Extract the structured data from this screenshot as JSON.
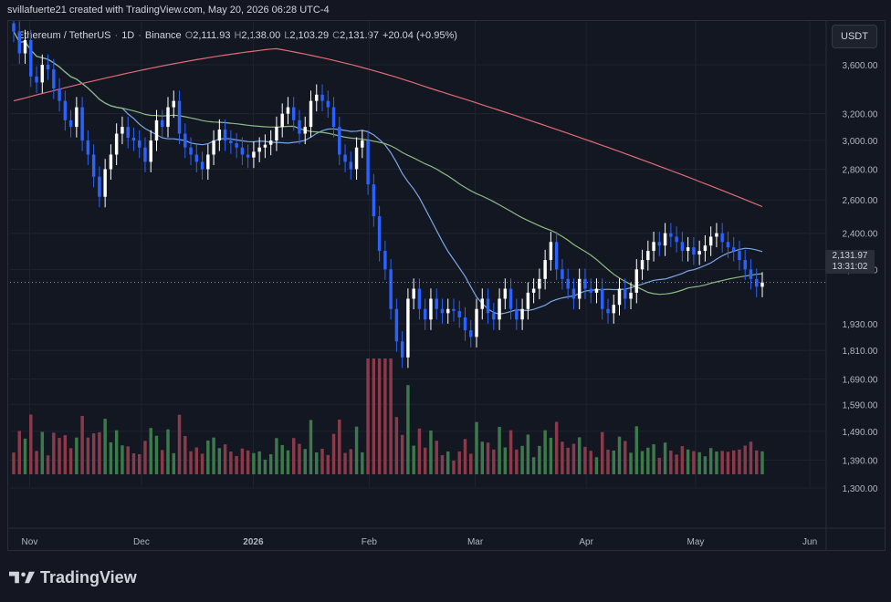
{
  "header": {
    "credit": "svillafuerte21 created with TradingView.com, May 20, 2026 06:28 UTC-4"
  },
  "legend": {
    "symbol": "Ethereum / TetherUS",
    "timeframe": "1D",
    "exchange": "Binance",
    "open_label": "O",
    "open": "2,111.93",
    "high_label": "H",
    "high": "2,138.00",
    "low_label": "L",
    "low": "2,103.29",
    "close_label": "C",
    "close": "2,131.97",
    "change": "+20.04 (+0.95%)"
  },
  "currency_button": "USDT",
  "last_price": {
    "price": "2,131.97",
    "countdown": "13:31:02"
  },
  "footer": {
    "brand": "TradingView"
  },
  "colors": {
    "background": "#131722",
    "up_candle": "#ffffff",
    "down_candle": "#2962ff",
    "ma_short": "#7ba7e8",
    "ma_mid": "#8bbb83",
    "ma_long": "#e06c75",
    "volume_up": "#3d7a4b",
    "volume_down": "#8b3a4a"
  },
  "chart_data": {
    "type": "candlestick",
    "title": "Ethereum / TetherUS · 1D · Binance",
    "x_ticks": [
      "Nov",
      "Dec",
      "2026",
      "Feb",
      "Mar",
      "Apr",
      "May",
      "Jun"
    ],
    "y_ticks": [
      "3,600.00",
      "3,200.00",
      "3,000.00",
      "2,800.00",
      "2,600.00",
      "2,400.00",
      "2,200.00",
      "1,930.00",
      "1,810.00",
      "1,690.00",
      "1,590.00",
      "1,490.00",
      "1,390.00",
      "1,300.00"
    ],
    "y_scale": "log",
    "ylim": [
      1300,
      4000
    ],
    "grid": true,
    "close_series_approx": [
      3900,
      3700,
      3820,
      3500,
      3450,
      3600,
      3560,
      3400,
      3300,
      3150,
      3100,
      3250,
      3000,
      2900,
      2750,
      2620,
      2800,
      2900,
      3050,
      3100,
      3020,
      3000,
      2950,
      2850,
      3000,
      3150,
      3100,
      3250,
      3300,
      3050,
      2950,
      2900,
      2850,
      2800,
      2900,
      3000,
      3080,
      3000,
      2980,
      2950,
      2900,
      2880,
      2920,
      2950,
      2970,
      3000,
      3100,
      3200,
      3250,
      3150,
      3050,
      3100,
      3300,
      3350,
      3300,
      3250,
      3100,
      2900,
      2850,
      2800,
      2950,
      3000,
      2700,
      2500,
      2300,
      2200,
      2000,
      1850,
      1780,
      2050,
      2100,
      2000,
      1950,
      2050,
      2000,
      1980,
      2000,
      1990,
      1960,
      1900,
      1870,
      2000,
      2050,
      1980,
      1950,
      2050,
      2100,
      2000,
      1950,
      2000,
      2080,
      2100,
      2150,
      2250,
      2350,
      2200,
      2150,
      2100,
      2050,
      2150,
      2100,
      2080,
      2100,
      2000,
      1980,
      2020,
      2100,
      2050,
      2080,
      2200,
      2250,
      2300,
      2350,
      2330,
      2400,
      2380,
      2350,
      2300,
      2320,
      2280,
      2300,
      2330,
      2380,
      2400,
      2350,
      2320,
      2300,
      2250,
      2200,
      2150,
      2110,
      2132
    ],
    "series": [
      {
        "name": "",
        "type": "moving_average",
        "color": "#7ba7e8"
      },
      {
        "name": "",
        "type": "moving_average",
        "color": "#8bbb83"
      },
      {
        "name": "",
        "type": "moving_average",
        "color": "#e06c75"
      }
    ],
    "last_price": 2131.97,
    "volume": "shown as histogram at bottom, spike near early Feb"
  }
}
